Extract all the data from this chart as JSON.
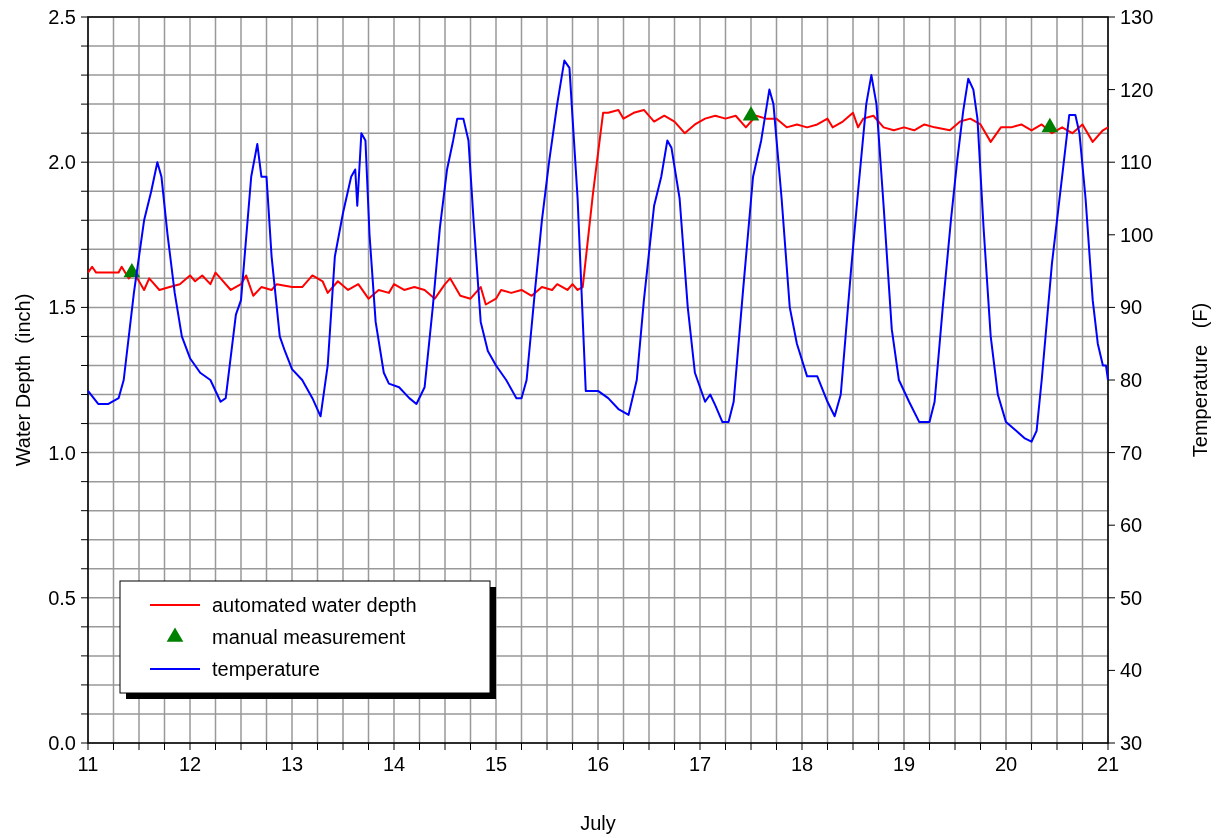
{
  "chart_data": {
    "type": "line",
    "xlabel": "July",
    "ylabel": "Water Depth  (inch)",
    "y2label": "Temperature   (F)",
    "xlim": [
      11,
      21
    ],
    "ylim": [
      0,
      2.5
    ],
    "y2lim": [
      30,
      130
    ],
    "xticks": [
      11,
      {
        "value": 11.25,
        "label": null
      },
      {
        "value": 11.5,
        "label": null
      },
      {
        "value": 11.75,
        "label": null
      },
      12,
      {
        "value": 12.25,
        "label": null
      },
      {
        "value": 12.5,
        "label": null
      },
      {
        "value": 12.75,
        "label": null
      },
      13,
      {
        "value": 13.25,
        "label": null
      },
      {
        "value": 13.5,
        "label": null
      },
      {
        "value": 13.75,
        "label": null
      },
      14,
      {
        "value": 14.25,
        "label": null
      },
      {
        "value": 14.5,
        "label": null
      },
      {
        "value": 14.75,
        "label": null
      },
      15,
      {
        "value": 15.25,
        "label": null
      },
      {
        "value": 15.5,
        "label": null
      },
      {
        "value": 15.75,
        "label": null
      },
      16,
      {
        "value": 16.25,
        "label": null
      },
      {
        "value": 16.5,
        "label": null
      },
      {
        "value": 16.75,
        "label": null
      },
      17,
      {
        "value": 17.25,
        "label": null
      },
      {
        "value": 17.5,
        "label": null
      },
      {
        "value": 17.75,
        "label": null
      },
      18,
      {
        "value": 18.25,
        "label": null
      },
      {
        "value": 18.5,
        "label": null
      },
      {
        "value": 18.75,
        "label": null
      },
      19,
      {
        "value": 19.25,
        "label": null
      },
      {
        "value": 19.5,
        "label": null
      },
      {
        "value": 19.75,
        "label": null
      },
      20,
      {
        "value": 20.25,
        "label": null
      },
      {
        "value": 20.5,
        "label": null
      },
      {
        "value": 20.75,
        "label": null
      },
      21
    ],
    "yticks": [
      {
        "value": 0,
        "label": "0.0"
      },
      {
        "value": 0.1,
        "label": null
      },
      {
        "value": 0.2,
        "label": null
      },
      {
        "value": 0.3,
        "label": null
      },
      {
        "value": 0.4,
        "label": null
      },
      0.5,
      {
        "value": 0.6,
        "label": null
      },
      {
        "value": 0.7,
        "label": null
      },
      {
        "value": 0.8,
        "label": null
      },
      {
        "value": 0.9,
        "label": null
      },
      {
        "value": 1,
        "label": "1.0"
      },
      {
        "value": 1.1,
        "label": null
      },
      {
        "value": 1.2,
        "label": null
      },
      {
        "value": 1.3,
        "label": null
      },
      {
        "value": 1.4,
        "label": null
      },
      1.5,
      {
        "value": 1.6,
        "label": null
      },
      {
        "value": 1.7,
        "label": null
      },
      {
        "value": 1.8,
        "label": null
      },
      {
        "value": 1.9,
        "label": null
      },
      {
        "value": 2,
        "label": "2.0"
      },
      {
        "value": 2.1,
        "label": null
      },
      {
        "value": 2.2,
        "label": null
      },
      {
        "value": 2.3,
        "label": null
      },
      {
        "value": 2.4,
        "label": null
      },
      2.5
    ],
    "y2ticks": [
      30,
      40,
      50,
      60,
      70,
      80,
      90,
      100,
      110,
      120,
      130
    ],
    "grid": true,
    "legend": "bottom left",
    "series": [
      {
        "name": "automated water depth",
        "color": "#ff0000",
        "x": [
          11.0,
          11.04,
          11.08,
          11.3,
          11.33,
          11.4,
          11.45,
          11.5,
          11.55,
          11.6,
          11.7,
          11.8,
          11.9,
          12.0,
          12.05,
          12.12,
          12.2,
          12.25,
          12.3,
          12.4,
          12.5,
          12.55,
          12.62,
          12.7,
          12.8,
          12.85,
          13.0,
          13.1,
          13.2,
          13.3,
          13.35,
          13.45,
          13.55,
          13.65,
          13.75,
          13.85,
          13.95,
          14.0,
          14.1,
          14.2,
          14.3,
          14.4,
          14.5,
          14.55,
          14.65,
          14.75,
          14.85,
          14.9,
          15.0,
          15.05,
          15.15,
          15.25,
          15.35,
          15.45,
          15.55,
          15.6,
          15.7,
          15.75,
          15.8,
          15.85,
          15.95,
          16.05,
          16.1,
          16.2,
          16.25,
          16.35,
          16.45,
          16.55,
          16.65,
          16.75,
          16.85,
          16.95,
          17.05,
          17.15,
          17.25,
          17.35,
          17.45,
          17.55,
          17.65,
          17.75,
          17.85,
          17.95,
          18.05,
          18.15,
          18.25,
          18.3,
          18.4,
          18.5,
          18.55,
          18.6,
          18.7,
          18.8,
          18.9,
          19.0,
          19.1,
          19.2,
          19.3,
          19.45,
          19.55,
          19.65,
          19.75,
          19.85,
          19.95,
          20.05,
          20.15,
          20.25,
          20.35,
          20.45,
          20.55,
          20.65,
          20.75,
          20.85,
          20.95,
          21.0
        ],
        "values": [
          1.62,
          1.64,
          1.62,
          1.62,
          1.64,
          1.6,
          1.62,
          1.59,
          1.56,
          1.6,
          1.56,
          1.57,
          1.58,
          1.61,
          1.59,
          1.61,
          1.58,
          1.62,
          1.6,
          1.56,
          1.58,
          1.61,
          1.54,
          1.57,
          1.56,
          1.58,
          1.57,
          1.57,
          1.61,
          1.59,
          1.55,
          1.59,
          1.56,
          1.58,
          1.53,
          1.56,
          1.55,
          1.58,
          1.56,
          1.57,
          1.56,
          1.53,
          1.58,
          1.6,
          1.54,
          1.53,
          1.57,
          1.51,
          1.53,
          1.56,
          1.55,
          1.56,
          1.54,
          1.57,
          1.56,
          1.58,
          1.56,
          1.58,
          1.56,
          1.57,
          1.89,
          2.17,
          2.17,
          2.18,
          2.15,
          2.17,
          2.18,
          2.14,
          2.16,
          2.14,
          2.1,
          2.13,
          2.15,
          2.16,
          2.15,
          2.16,
          2.12,
          2.16,
          2.15,
          2.15,
          2.12,
          2.13,
          2.12,
          2.13,
          2.15,
          2.12,
          2.14,
          2.17,
          2.12,
          2.15,
          2.16,
          2.12,
          2.11,
          2.12,
          2.11,
          2.13,
          2.12,
          2.11,
          2.14,
          2.15,
          2.13,
          2.07,
          2.12,
          2.12,
          2.13,
          2.11,
          2.13,
          2.1,
          2.12,
          2.1,
          2.13,
          2.07,
          2.11,
          2.12
        ]
      },
      {
        "name": "manual measurement",
        "color": "#008000",
        "type": "scatter",
        "marker": "triangle",
        "x": [
          11.43,
          17.5,
          20.43
        ],
        "values": [
          1.62,
          2.16,
          2.12
        ]
      },
      {
        "name": "temperature",
        "color": "#0000ff",
        "axis": "y2",
        "x": [
          11.0,
          11.1,
          11.2,
          11.3,
          11.35,
          11.45,
          11.55,
          11.62,
          11.68,
          11.72,
          11.78,
          11.85,
          11.92,
          12.0,
          12.1,
          12.2,
          12.3,
          12.35,
          12.45,
          12.5,
          12.6,
          12.66,
          12.7,
          12.75,
          12.8,
          12.88,
          12.93,
          13.0,
          13.1,
          13.2,
          13.28,
          13.35,
          13.42,
          13.5,
          13.58,
          13.62,
          13.64,
          13.68,
          13.72,
          13.76,
          13.82,
          13.9,
          13.95,
          14.05,
          14.15,
          14.22,
          14.3,
          14.38,
          14.45,
          14.52,
          14.58,
          14.62,
          14.68,
          14.73,
          14.78,
          14.85,
          14.92,
          15.0,
          15.1,
          15.2,
          15.25,
          15.3,
          15.38,
          15.45,
          15.52,
          15.6,
          15.67,
          15.72,
          15.8,
          15.88,
          16.0,
          16.1,
          16.2,
          16.3,
          16.38,
          16.45,
          16.55,
          16.62,
          16.68,
          16.72,
          16.8,
          16.88,
          16.95,
          17.05,
          17.1,
          17.15,
          17.22,
          17.28,
          17.33,
          17.42,
          17.52,
          17.6,
          17.68,
          17.72,
          17.8,
          17.88,
          17.95,
          18.05,
          18.15,
          18.25,
          18.32,
          18.38,
          18.48,
          18.55,
          18.63,
          18.68,
          18.73,
          18.8,
          18.88,
          18.95,
          19.05,
          19.15,
          19.25,
          19.3,
          19.38,
          19.46,
          19.52,
          19.58,
          19.63,
          19.68,
          19.72,
          19.78,
          19.85,
          19.92,
          20.0,
          20.1,
          20.18,
          20.25,
          20.3,
          20.35,
          20.45,
          20.55,
          20.62,
          20.68,
          20.72,
          20.78,
          20.85,
          20.9,
          20.95,
          20.98,
          21.0
        ],
        "values": [
          78.5,
          76.7,
          76.7,
          77.5,
          80,
          92,
          102,
          106,
          110,
          108,
          100,
          92,
          86,
          83,
          81,
          80,
          77,
          77.5,
          89,
          91,
          108,
          112.5,
          108,
          108,
          97,
          86,
          84,
          81.5,
          80,
          77.5,
          75,
          82,
          97,
          103,
          108,
          109,
          104,
          114,
          113,
          100,
          88,
          81,
          79.5,
          79,
          77.5,
          76.7,
          79,
          90,
          101,
          109,
          113,
          116,
          116,
          113,
          102,
          88,
          84,
          82,
          80,
          77.5,
          77.5,
          80,
          92,
          102,
          110,
          118,
          124,
          123,
          105,
          78.5,
          78.5,
          77.5,
          76,
          75.2,
          80,
          91,
          104,
          108,
          113,
          112,
          105,
          90,
          81,
          77,
          78,
          76.5,
          74.2,
          74.2,
          77,
          92,
          108,
          113,
          120,
          118,
          105,
          90,
          85,
          80.5,
          80.5,
          77,
          75,
          78,
          95,
          106,
          118,
          122,
          118,
          104,
          87,
          80,
          77,
          74.2,
          74.2,
          77,
          90,
          102,
          110,
          117,
          121.5,
          120,
          116,
          101,
          86,
          78,
          74.2,
          73,
          72,
          71.5,
          73,
          80,
          96,
          108,
          116.5,
          116.5,
          114,
          105,
          91,
          85,
          82,
          82,
          80
        ]
      }
    ]
  }
}
